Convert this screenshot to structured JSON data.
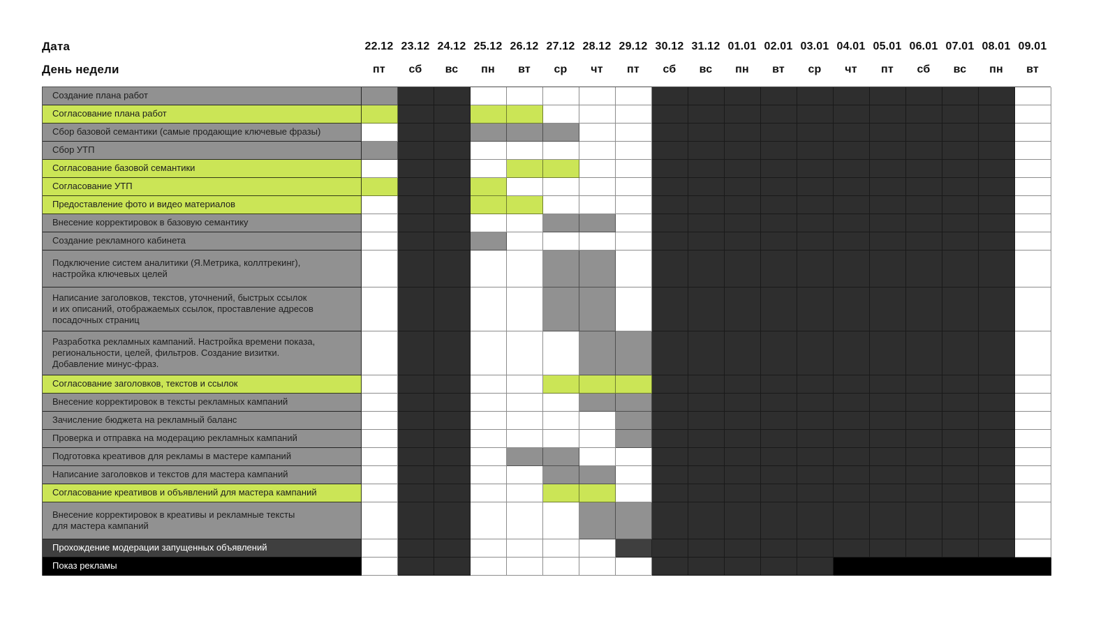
{
  "chart_data": {
    "type": "table",
    "subtype": "gantt-schedule",
    "header": {
      "date_label": "Дата",
      "weekday_label": "День недели"
    },
    "columns": [
      {
        "date": "22.12",
        "day": "пт",
        "holiday": false
      },
      {
        "date": "23.12",
        "day": "сб",
        "holiday": true
      },
      {
        "date": "24.12",
        "day": "вс",
        "holiday": true
      },
      {
        "date": "25.12",
        "day": "пн",
        "holiday": false
      },
      {
        "date": "26.12",
        "day": "вт",
        "holiday": false
      },
      {
        "date": "27.12",
        "day": "ср",
        "holiday": false
      },
      {
        "date": "28.12",
        "day": "чт",
        "holiday": false
      },
      {
        "date": "29.12",
        "day": "пт",
        "holiday": false
      },
      {
        "date": "30.12",
        "day": "сб",
        "holiday": true
      },
      {
        "date": "31.12",
        "day": "вс",
        "holiday": true
      },
      {
        "date": "01.01",
        "day": "пн",
        "holiday": true
      },
      {
        "date": "02.01",
        "day": "вт",
        "holiday": true
      },
      {
        "date": "03.01",
        "day": "ср",
        "holiday": true
      },
      {
        "date": "04.01",
        "day": "чт",
        "holiday": true
      },
      {
        "date": "05.01",
        "day": "пт",
        "holiday": true
      },
      {
        "date": "06.01",
        "day": "сб",
        "holiday": true
      },
      {
        "date": "07.01",
        "day": "вс",
        "holiday": true
      },
      {
        "date": "08.01",
        "day": "пн",
        "holiday": true
      },
      {
        "date": "09.01",
        "day": "вт",
        "holiday": false
      }
    ],
    "rows": [
      {
        "label": "Создание плана работ",
        "category": "task",
        "fill_dates": [
          "22.12"
        ]
      },
      {
        "label": "Согласование плана работ",
        "category": "approval",
        "fill_dates": [
          "22.12",
          "25.12",
          "26.12"
        ]
      },
      {
        "label": "Сбор базовой семантики (самые продающие ключевые фразы)",
        "category": "task",
        "fill_dates": [
          "25.12",
          "26.12",
          "27.12"
        ]
      },
      {
        "label": "Сбор УТП",
        "category": "task",
        "fill_dates": [
          "22.12"
        ]
      },
      {
        "label": "Согласование базовой семантики",
        "category": "approval",
        "fill_dates": [
          "26.12",
          "27.12"
        ]
      },
      {
        "label": "Согласование УТП",
        "category": "approval",
        "fill_dates": [
          "22.12",
          "25.12"
        ]
      },
      {
        "label": "Предоставление фото и видео материалов",
        "category": "approval",
        "fill_dates": [
          "25.12",
          "26.12"
        ]
      },
      {
        "label": "Внесение корректировок в базовую семантику",
        "category": "task",
        "fill_dates": [
          "27.12",
          "28.12"
        ]
      },
      {
        "label": "Создание рекламного кабинета",
        "category": "task",
        "fill_dates": [
          "25.12"
        ]
      },
      {
        "label": "Подключение систем аналитики (Я.Метрика, коллтрекинг),\nнастройка ключевых целей",
        "category": "task",
        "fill_dates": [
          "27.12",
          "28.12"
        ]
      },
      {
        "label": "Написание заголовков, текстов, уточнений, быстрых ссылок\nи их описаний, отображаемых ссылок, проставление адресов\nпосадочных страниц",
        "category": "task",
        "fill_dates": [
          "27.12",
          "28.12"
        ]
      },
      {
        "label": "Разработка рекламных кампаний. Настройка времени показа,\nрегиональности, целей, фильтров. Создание визитки.\nДобавление минус-фраз.",
        "category": "task",
        "fill_dates": [
          "28.12",
          "29.12"
        ]
      },
      {
        "label": "Согласование заголовков, текстов и ссылок",
        "category": "approval",
        "fill_dates": [
          "27.12",
          "28.12",
          "29.12"
        ]
      },
      {
        "label": "Внесение корректировок в тексты рекламных кампаний",
        "category": "task",
        "fill_dates": [
          "28.12",
          "29.12"
        ]
      },
      {
        "label": "Зачисление бюджета на рекламный баланс",
        "category": "task",
        "fill_dates": [
          "29.12"
        ]
      },
      {
        "label": "Проверка и отправка на модерацию рекламных кампаний",
        "category": "task",
        "fill_dates": [
          "29.12"
        ]
      },
      {
        "label": "Подготовка креативов для рекламы в мастере кампаний",
        "category": "task",
        "fill_dates": [
          "26.12",
          "27.12"
        ]
      },
      {
        "label": "Написание заголовков и текстов для мастера кампаний",
        "category": "task",
        "fill_dates": [
          "27.12",
          "28.12"
        ]
      },
      {
        "label": "Согласование креативов и объявлений для мастера кампаний",
        "category": "approval",
        "fill_dates": [
          "27.12",
          "28.12"
        ]
      },
      {
        "label": "Внесение корректировок в креативы и рекламные тексты\nдля  мастера кампаний",
        "category": "task",
        "fill_dates": [
          "28.12",
          "29.12"
        ]
      },
      {
        "label": "Прохождение модерации запущенных объявлений",
        "category": "moderation",
        "fill_dates": [
          "29.12"
        ]
      },
      {
        "label": "Показ рекламы",
        "category": "launch",
        "fill_dates": [
          "04.01",
          "05.01",
          "06.01",
          "07.01",
          "08.01",
          "09.01"
        ]
      }
    ],
    "colors": {
      "workday_cell": "#ffffff",
      "holiday_cell": "#2e2e2e",
      "task_fill": "#919191",
      "approval_fill": "#cbe556",
      "moderation_fill": "#3f3f3f",
      "launch_fill": "#000000",
      "label_text_dark": "#1d1d1d",
      "label_text_light": "#ffffff"
    },
    "legend_position": "none",
    "grid": "on"
  }
}
